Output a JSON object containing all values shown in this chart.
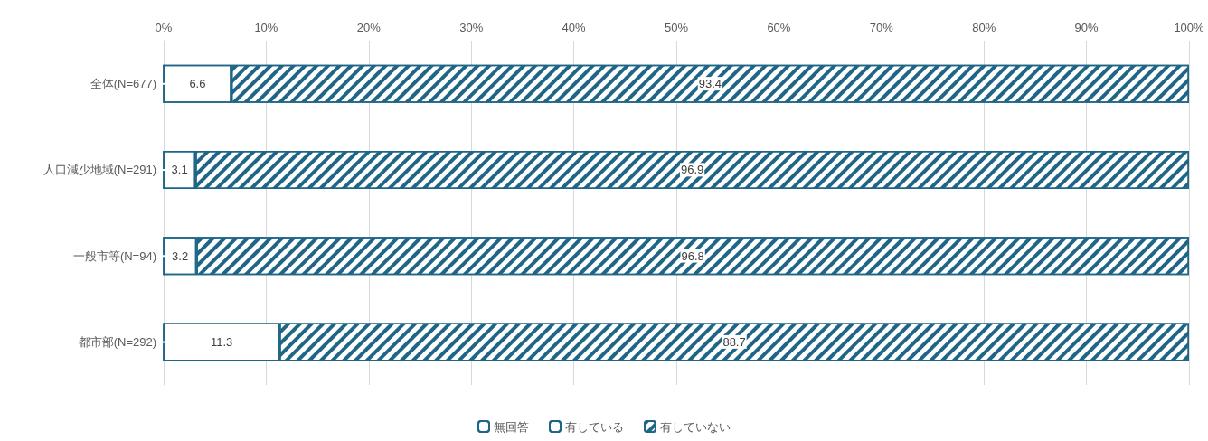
{
  "chart_data": {
    "type": "bar",
    "orientation": "horizontal",
    "stacked": true,
    "categories": [
      "全体(N=677)",
      "人口減少地域(N=291)",
      "一般市等(N=94)",
      "都市部(N=292)"
    ],
    "series": [
      {
        "name": "無回答",
        "color": "#1f6586",
        "values": [
          0,
          0,
          0,
          0
        ],
        "value_labels": [
          null,
          null,
          null,
          null
        ]
      },
      {
        "name": "有している",
        "color": "#1f6586",
        "values": [
          6.6,
          3.1,
          3.2,
          11.3
        ],
        "value_labels": [
          "6.6",
          "3.1",
          "3.2",
          "11.3"
        ]
      },
      {
        "name": "有していない",
        "color": "#1f6586",
        "values": [
          93.4,
          96.9,
          96.8,
          88.7
        ],
        "value_labels": [
          "93.4",
          "96.9",
          "96.8",
          "88.7"
        ]
      }
    ],
    "xlim": [
      0,
      100
    ],
    "xticks": [
      {
        "value": 0,
        "label": "0%"
      },
      {
        "value": 10,
        "label": "10%"
      },
      {
        "value": 20,
        "label": "20%"
      },
      {
        "value": 30,
        "label": "30%"
      },
      {
        "value": 40,
        "label": "40%"
      },
      {
        "value": 50,
        "label": "50%"
      },
      {
        "value": 60,
        "label": "60%"
      },
      {
        "value": 70,
        "label": "70%"
      },
      {
        "value": 80,
        "label": "80%"
      },
      {
        "value": 90,
        "label": "90%"
      },
      {
        "value": 100,
        "label": "100%"
      }
    ],
    "grid": "x",
    "legend": "bottom"
  }
}
